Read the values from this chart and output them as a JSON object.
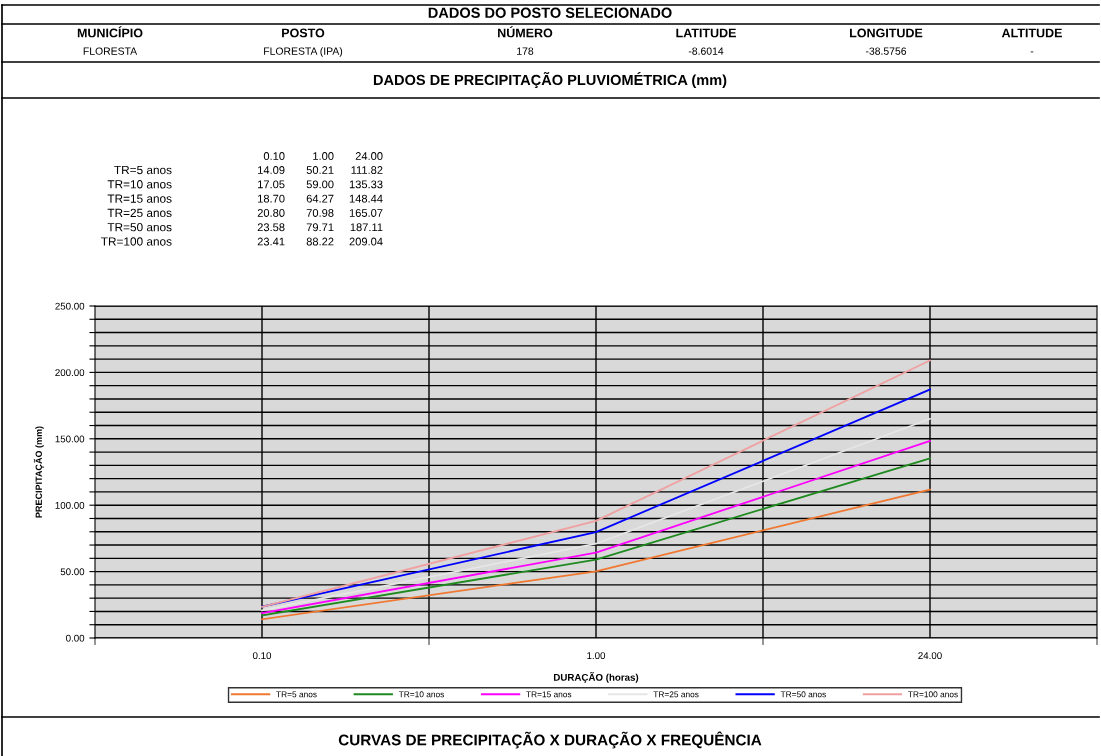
{
  "chart_data": {
    "type": "line",
    "title": "DADOS DO POSTO SELECIONADO",
    "subtitle": "DADOS DE PRECIPITAÇÃO PLUVIOMÉTRICA (mm)",
    "annotations": [
      "MUNICÍPIO",
      "POSTO",
      "NÚMERO",
      "LATITUDE",
      "LONGITUDE",
      "ALTITUDE",
      "FLORESTA",
      "FLORESTA (IPA)",
      "178",
      "-8.6014",
      "-38.5756",
      "-",
      "CURVAS DE PRECIPITAÇÃO X DURAÇÃO X FREQUÊNCIA",
      "14.09",
      "50.21",
      "111.82",
      "17.05",
      "59.00",
      "135.33",
      "18.70",
      "64.27",
      "148.44",
      "20.80",
      "70.98",
      "165.07",
      "23.58",
      "79.71",
      "187.11",
      "23.41",
      "88.22",
      "209.04"
    ],
    "xlabel": "DURAÇÃO (horas)",
    "ylabel": "PRECIPITAÇÃO (mm)",
    "categories": [
      "0.10",
      "1.00",
      "24.00"
    ],
    "series": [
      {
        "name": "TR=5 anos",
        "color": "#f07830",
        "values": [
          14.09,
          50.21,
          111.82
        ]
      },
      {
        "name": "TR=10 anos",
        "color": "#1f8a1f",
        "values": [
          17.05,
          59.0,
          135.33
        ]
      },
      {
        "name": "TR=15 anos",
        "color": "#ff00ff",
        "values": [
          18.7,
          64.27,
          148.44
        ]
      },
      {
        "name": "TR=25 anos",
        "color": "#e6e6e6",
        "values": [
          20.8,
          70.98,
          165.07
        ]
      },
      {
        "name": "TR=50 anos",
        "color": "#0000ff",
        "values": [
          23.58,
          79.71,
          187.11
        ]
      },
      {
        "name": "TR=100 anos",
        "color": "#f0a0a0",
        "values": [
          23.41,
          88.22,
          209.04
        ]
      }
    ],
    "ylim": [
      0,
      250
    ],
    "yticks": [
      {
        "value": 0,
        "label": "0.00"
      },
      {
        "value": 10,
        "label": null
      },
      {
        "value": 20,
        "label": null
      },
      {
        "value": 30,
        "label": null
      },
      {
        "value": 40,
        "label": null
      },
      {
        "value": 50,
        "label": "50.00"
      },
      {
        "value": 60,
        "label": null
      },
      {
        "value": 70,
        "label": null
      },
      {
        "value": 80,
        "label": null
      },
      {
        "value": 90,
        "label": null
      },
      {
        "value": 100,
        "label": "100.00"
      },
      {
        "value": 110,
        "label": null
      },
      {
        "value": 120,
        "label": null
      },
      {
        "value": 130,
        "label": null
      },
      {
        "value": 140,
        "label": null
      },
      {
        "value": 150,
        "label": "150.00"
      },
      {
        "value": 160,
        "label": null
      },
      {
        "value": 170,
        "label": null
      },
      {
        "value": 180,
        "label": null
      },
      {
        "value": 190,
        "label": null
      },
      {
        "value": 200,
        "label": "200.00"
      },
      {
        "value": 210,
        "label": null
      },
      {
        "value": 220,
        "label": null
      },
      {
        "value": 230,
        "label": null
      },
      {
        "value": 240,
        "label": null
      },
      {
        "value": 250,
        "label": "250.00"
      }
    ],
    "grid": true,
    "legend": "bottom",
    "marker": "none",
    "line_style": "solid"
  }
}
